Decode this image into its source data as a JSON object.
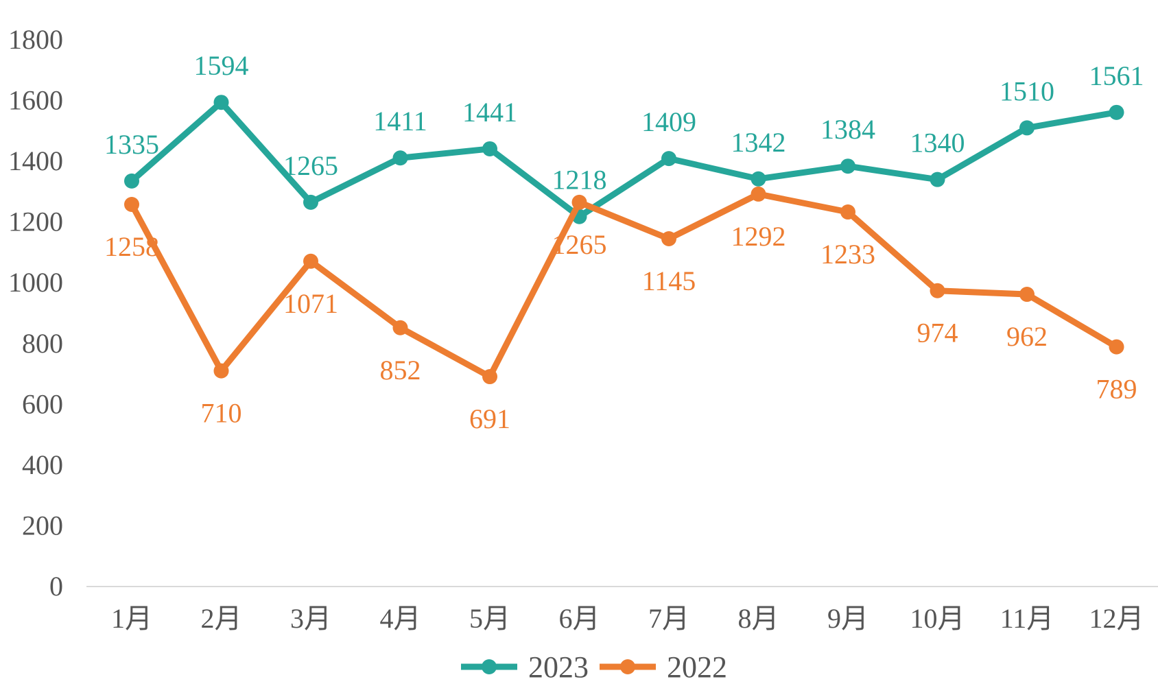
{
  "chart_data": {
    "type": "line",
    "title": "",
    "xlabel": "",
    "ylabel": "",
    "categories": [
      "1月",
      "2月",
      "3月",
      "4月",
      "5月",
      "6月",
      "7月",
      "8月",
      "9月",
      "10月",
      "11月",
      "12月"
    ],
    "ylim": [
      0,
      1800
    ],
    "yticks": [
      0,
      200,
      400,
      600,
      800,
      1000,
      1200,
      1400,
      1600,
      1800
    ],
    "grid": false,
    "legend_position": "bottom",
    "series": [
      {
        "name": "2023",
        "color": "#26A69A",
        "values": [
          1335,
          1594,
          1265,
          1411,
          1441,
          1218,
          1409,
          1342,
          1384,
          1340,
          1510,
          1561
        ],
        "label_position": "above"
      },
      {
        "name": "2022",
        "color": "#ED7D31",
        "values": [
          1258,
          710,
          1071,
          852,
          691,
          1265,
          1145,
          1292,
          1233,
          974,
          962,
          789
        ],
        "label_position": "below"
      }
    ]
  }
}
